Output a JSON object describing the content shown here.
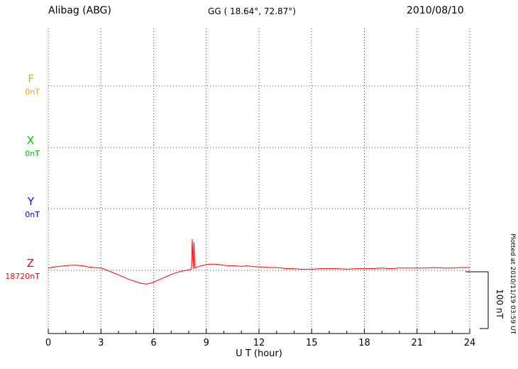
{
  "header": {
    "station": "Alibag (ABG)",
    "coordinates": "GG ( 18.64°,  72.87°)",
    "date": "2010/08/10"
  },
  "components": [
    {
      "label": "F",
      "value": "0nT",
      "color": "#FFA500"
    },
    {
      "label": "X",
      "value": "0nT",
      "color": "#00C000"
    },
    {
      "label": "Y",
      "value": "0nT",
      "color": "#0000FF"
    },
    {
      "label": "Z",
      "value": "18720nT",
      "color": "#FF0000"
    }
  ],
  "axis": {
    "xlabel": "U T (hour)"
  },
  "scale": {
    "label": "100 nT"
  },
  "footer": {
    "plotted_at": "Plotted at 2010/11/19 03:59 UT"
  },
  "chart_data": {
    "type": "line",
    "title": "Alibag (ABG) magnetogram 2010/08/10",
    "xlabel": "U T (hour)",
    "xlim": [
      0,
      24
    ],
    "x_ticks": [
      0,
      3,
      6,
      9,
      12,
      15,
      18,
      21,
      24
    ],
    "x_minor_tick_hours": 1,
    "grid": "dotted",
    "scale_bar": {
      "nT": 100,
      "label": "100 nT"
    },
    "components": [
      {
        "name": "F",
        "baseline_label": "0nT",
        "trace_plotted": false
      },
      {
        "name": "X",
        "baseline_label": "0nT",
        "trace_plotted": false
      },
      {
        "name": "Y",
        "baseline_label": "0nT",
        "trace_plotted": false
      },
      {
        "name": "Z",
        "baseline_label": "18720nT",
        "trace_plotted": true
      }
    ],
    "series": [
      {
        "name": "Z",
        "color": "#FF0000",
        "baseline_nT": 18720,
        "points_hour_offset_nT": [
          [
            0,
            4
          ],
          [
            0.3,
            6
          ],
          [
            0.6,
            7
          ],
          [
            1,
            8
          ],
          [
            1.3,
            9
          ],
          [
            1.6,
            9
          ],
          [
            2,
            8
          ],
          [
            2.3,
            6
          ],
          [
            2.6,
            5
          ],
          [
            3,
            4
          ],
          [
            3.3,
            1
          ],
          [
            3.6,
            -3
          ],
          [
            4,
            -8
          ],
          [
            4.3,
            -12
          ],
          [
            4.6,
            -16
          ],
          [
            5,
            -20
          ],
          [
            5.3,
            -23
          ],
          [
            5.6,
            -24
          ],
          [
            5.9,
            -22
          ],
          [
            6.2,
            -18
          ],
          [
            6.5,
            -14
          ],
          [
            6.8,
            -10
          ],
          [
            7.1,
            -6
          ],
          [
            7.4,
            -3
          ],
          [
            7.7,
            -1
          ],
          [
            8,
            1
          ],
          [
            8.15,
            2
          ],
          [
            8.2,
            55
          ],
          [
            8.25,
            3
          ],
          [
            8.3,
            50
          ],
          [
            8.35,
            4
          ],
          [
            8.5,
            6
          ],
          [
            8.7,
            8
          ],
          [
            9,
            10
          ],
          [
            9.2,
            11
          ],
          [
            9.5,
            11
          ],
          [
            9.8,
            10
          ],
          [
            10,
            9
          ],
          [
            10.3,
            8
          ],
          [
            10.6,
            8
          ],
          [
            11,
            7
          ],
          [
            11.3,
            8
          ],
          [
            11.6,
            7
          ],
          [
            12,
            6
          ],
          [
            12.3,
            6
          ],
          [
            12.6,
            5
          ],
          [
            13,
            5
          ],
          [
            13.3,
            4
          ],
          [
            13.6,
            3
          ],
          [
            14,
            3
          ],
          [
            14.3,
            2
          ],
          [
            14.6,
            2
          ],
          [
            15,
            2
          ],
          [
            15.5,
            3
          ],
          [
            16,
            3
          ],
          [
            16.5,
            3
          ],
          [
            17,
            2
          ],
          [
            17.5,
            3
          ],
          [
            18,
            3
          ],
          [
            18.5,
            3
          ],
          [
            19,
            4
          ],
          [
            19.5,
            3
          ],
          [
            20,
            4
          ],
          [
            20.5,
            4
          ],
          [
            21,
            4
          ],
          [
            21.5,
            4
          ],
          [
            22,
            5
          ],
          [
            22.5,
            4
          ],
          [
            23,
            4
          ],
          [
            23.5,
            5
          ],
          [
            24,
            5
          ]
        ]
      }
    ]
  }
}
